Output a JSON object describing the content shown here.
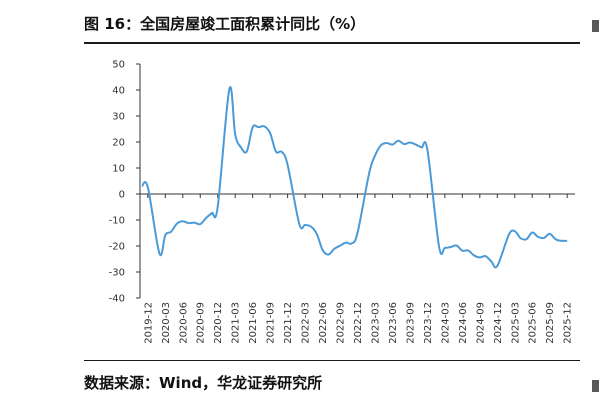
{
  "figure": {
    "title": "图 16：全国房屋竣工面积累计同比（%）",
    "source": "数据来源：Wind，华龙证券研究所"
  },
  "chart_data": {
    "type": "line",
    "title": "",
    "xlabel": "",
    "ylabel": "",
    "ylim": [
      -40,
      50
    ],
    "yticks": [
      50,
      40,
      30,
      20,
      10,
      0,
      -10,
      -20,
      -30,
      -40
    ],
    "grid": false,
    "line_color": "#4a9ad8",
    "x_tick_labels": [
      "2019-12",
      "2020-03",
      "2020-06",
      "2020-09",
      "2020-12",
      "2021-03",
      "2021-06",
      "2021-09",
      "2021-12",
      "2022-03",
      "2022-06",
      "2022-09",
      "2022-12",
      "2023-03",
      "2023-06",
      "2023-09",
      "2023-12",
      "2024-03",
      "2024-06",
      "2024-09",
      "2024-12",
      "2025-03",
      "2025-06",
      "2025-09",
      "2025-12"
    ],
    "series": [
      {
        "name": "",
        "x": [
          "2019-11",
          "2019-12",
          "2020-02",
          "2020-03",
          "2020-04",
          "2020-05",
          "2020-06",
          "2020-07",
          "2020-08",
          "2020-09",
          "2020-10",
          "2020-11",
          "2020-12",
          "2021-02",
          "2021-03",
          "2021-04",
          "2021-05",
          "2021-06",
          "2021-07",
          "2021-08",
          "2021-09",
          "2021-10",
          "2021-11",
          "2021-12",
          "2022-02",
          "2022-03",
          "2022-04",
          "2022-05",
          "2022-06",
          "2022-07",
          "2022-08",
          "2022-09",
          "2022-10",
          "2022-11",
          "2022-12",
          "2023-02",
          "2023-03",
          "2023-04",
          "2023-05",
          "2023-06",
          "2023-07",
          "2023-08",
          "2023-09",
          "2023-10",
          "2023-11",
          "2023-12",
          "2024-02",
          "2024-03",
          "2024-04",
          "2024-05",
          "2024-06",
          "2024-07",
          "2024-08",
          "2024-09",
          "2024-10",
          "2024-11",
          "2024-12",
          "2025-02",
          "2025-03",
          "2025-04",
          "2025-05",
          "2025-06",
          "2025-07",
          "2025-08",
          "2025-09",
          "2025-10",
          "2025-11",
          "2025-12"
        ],
        "values": [
          3,
          2.6,
          -22.9,
          -15.8,
          -14.5,
          -11.4,
          -10.5,
          -11.2,
          -11.0,
          -11.6,
          -9.2,
          -7.3,
          -4.9,
          40.4,
          22.9,
          17.9,
          16.4,
          25.7,
          25.7,
          26.0,
          23.4,
          16.3,
          16.2,
          11.2,
          -11.5,
          -11.9,
          -12.5,
          -15.3,
          -21.5,
          -23.3,
          -21.1,
          -19.9,
          -18.7,
          -19.0,
          -15.0,
          8.0,
          14.7,
          18.7,
          19.6,
          19.0,
          20.5,
          19.2,
          19.8,
          19.0,
          17.9,
          17.0,
          -20.2,
          -20.7,
          -20.4,
          -19.8,
          -21.8,
          -21.7,
          -23.6,
          -24.4,
          -23.9,
          -26.0,
          -27.7,
          -15.6,
          -14.3,
          -17.0,
          -17.4,
          -14.8,
          -16.5,
          -16.9,
          -15.3,
          -17.4,
          -18.0,
          -18.0
        ]
      }
    ]
  }
}
